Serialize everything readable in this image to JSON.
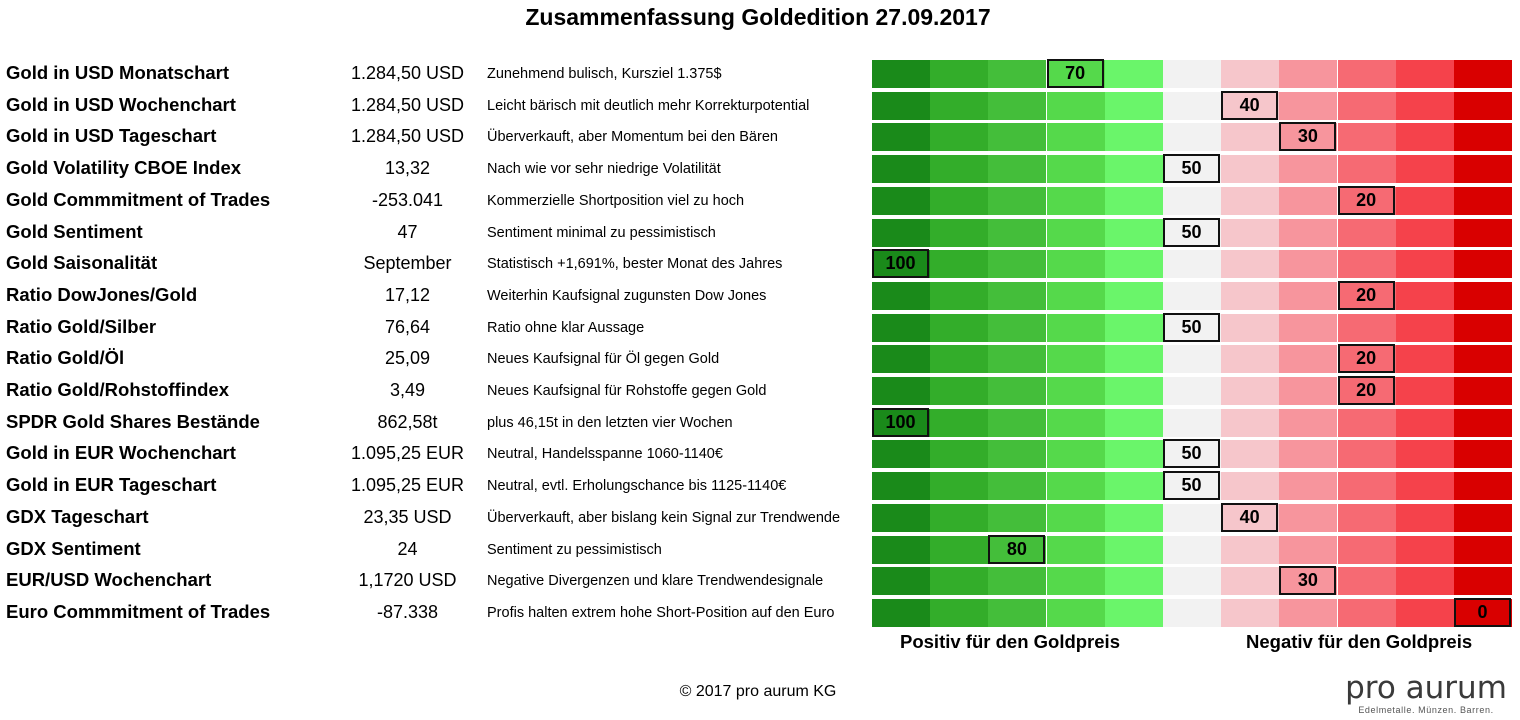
{
  "title": "Zusammenfassung Goldedition 27.09.2017",
  "chart_data": {
    "type": "table",
    "scale_colors": [
      "#1a8a1a",
      "#33ad2a",
      "#44be3a",
      "#55d94b",
      "#6af56a",
      "#f2f2f2",
      "#f6c6cb",
      "#f7959d",
      "#f66a73",
      "#f5424b",
      "#d90000"
    ],
    "rows": [
      {
        "label": "Gold in USD Monatschart",
        "value": "1.284,50 USD",
        "comment": "Zunehmend bulisch, Kursziel 1.375$",
        "score": 70
      },
      {
        "label": "Gold in USD Wochenchart",
        "value": "1.284,50 USD",
        "comment": "Leicht bärisch mit deutlich mehr Korrekturpotential",
        "score": 40
      },
      {
        "label": "Gold in USD Tageschart",
        "value": "1.284,50 USD",
        "comment": "Überverkauft, aber Momentum bei den Bären",
        "score": 30
      },
      {
        "label": "Gold Volatility CBOE Index",
        "value": "13,32",
        "comment": "Nach wie vor sehr niedrige Volatilität",
        "score": 50
      },
      {
        "label": "Gold Commmitment of Trades",
        "value": "-253.041",
        "comment": "Kommerzielle Shortposition viel zu hoch",
        "score": 20
      },
      {
        "label": "Gold Sentiment",
        "value": "47",
        "comment": "Sentiment minimal zu pessimistisch",
        "score": 50
      },
      {
        "label": "Gold Saisonalität",
        "value": "September",
        "comment": "Statistisch +1,691%, bester Monat des Jahres",
        "score": 100
      },
      {
        "label": "Ratio DowJones/Gold",
        "value": "17,12",
        "comment": "Weiterhin Kaufsignal zugunsten Dow Jones",
        "score": 20
      },
      {
        "label": "Ratio Gold/Silber",
        "value": "76,64",
        "comment": "Ratio ohne klar Aussage",
        "score": 50
      },
      {
        "label": "Ratio Gold/Öl",
        "value": "25,09",
        "comment": "Neues Kaufsignal für Öl gegen Gold",
        "score": 20
      },
      {
        "label": "Ratio Gold/Rohstoffindex",
        "value": "3,49",
        "comment": "Neues Kaufsignal für Rohstoffe gegen Gold",
        "score": 20
      },
      {
        "label": "SPDR Gold Shares Bestände",
        "value": "862,58t",
        "comment": "plus 46,15t in den letzten vier Wochen",
        "score": 100
      },
      {
        "label": "Gold in EUR Wochenchart",
        "value": "1.095,25 EUR",
        "comment": "Neutral, Handelsspanne 1060-1140€",
        "score": 50
      },
      {
        "label": "Gold in EUR Tageschart",
        "value": "1.095,25 EUR",
        "comment": "Neutral, evtl. Erholungschance bis 1125-1140€",
        "score": 50
      },
      {
        "label": "GDX Tageschart",
        "value": "23,35 USD",
        "comment": "Überverkauft, aber bislang kein Signal zur Trendwende",
        "score": 40
      },
      {
        "label": "GDX Sentiment",
        "value": "24",
        "comment": "Sentiment zu pessimistisch",
        "score": 80
      },
      {
        "label": "EUR/USD Wochenchart",
        "value": "1,1720 USD",
        "comment": "Negative Divergenzen und klare Trendwendesignale",
        "score": 30
      },
      {
        "label": "Euro Commmitment of Trades",
        "value": "-87.338",
        "comment": "Profis halten extrem hohe Short-Position auf den Euro",
        "score": 0
      }
    ]
  },
  "footer": {
    "positive_label": "Positiv für den Goldpreis",
    "negative_label": "Negativ für den Goldpreis",
    "copyright": "© 2017 pro aurum KG",
    "logo_main": "pro aurum",
    "logo_sub": "Edelmetalle. Münzen. Barren."
  }
}
